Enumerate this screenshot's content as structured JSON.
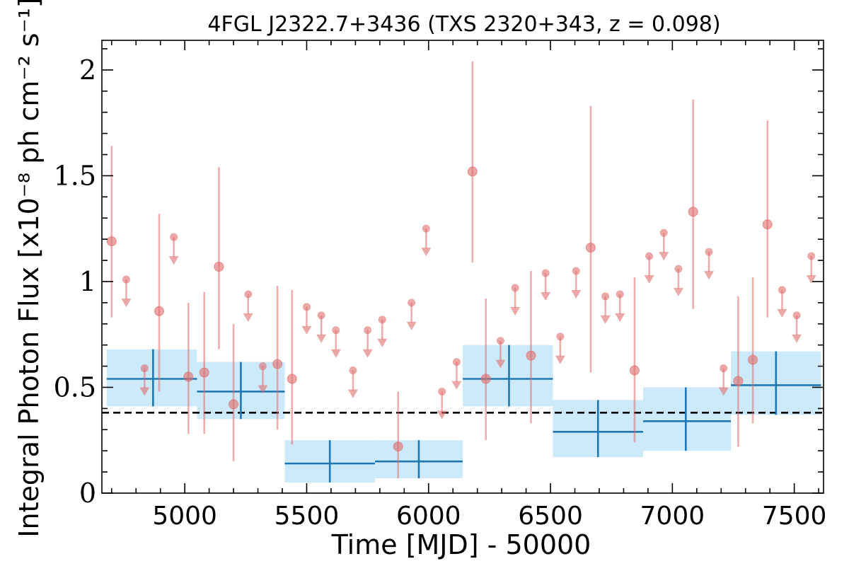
{
  "chart_data": {
    "type": "scatter",
    "title": "4FGL J2322.7+3436 (TXS 2320+343, z = 0.098)",
    "xlabel": "Time [MJD] - 50000",
    "ylabel": "Integral Photon Flux [x10⁻⁸ ph cm⁻² s⁻¹]",
    "xlim": [
      4660,
      7620
    ],
    "ylim": [
      0,
      2.14
    ],
    "xticks": [
      5000,
      5500,
      6000,
      6500,
      7000,
      7500
    ],
    "yticks": [
      0,
      0.5,
      1,
      1.5,
      2
    ],
    "ytick_labels": [
      "0",
      "0.5",
      "1",
      "1.5",
      "2"
    ],
    "reference_line": {
      "y": 0.38,
      "style": "dashed",
      "color": "#000000"
    },
    "colors": {
      "points": "#e06c6c",
      "bins": "#1f77b4",
      "band": "#cdeafb"
    },
    "series": [
      {
        "kind": "detection",
        "points": [
          {
            "x": 4700,
            "y": 1.19,
            "ylo": 0.83,
            "yhi": 1.64
          },
          {
            "x": 4895,
            "y": 0.86,
            "ylo": 0.48,
            "yhi": 1.32
          },
          {
            "x": 5015,
            "y": 0.55,
            "ylo": 0.28,
            "yhi": 0.9
          },
          {
            "x": 5080,
            "y": 0.57,
            "ylo": 0.28,
            "yhi": 0.95
          },
          {
            "x": 5140,
            "y": 1.07,
            "ylo": 0.68,
            "yhi": 1.54
          },
          {
            "x": 5200,
            "y": 0.42,
            "ylo": 0.15,
            "yhi": 0.8
          },
          {
            "x": 5380,
            "y": 0.61,
            "ylo": 0.3,
            "yhi": 0.98
          },
          {
            "x": 5440,
            "y": 0.54,
            "ylo": 0.23,
            "yhi": 0.96
          },
          {
            "x": 5875,
            "y": 0.22,
            "ylo": 0.07,
            "yhi": 0.48
          },
          {
            "x": 6180,
            "y": 1.52,
            "ylo": 1.09,
            "yhi": 2.04
          },
          {
            "x": 6235,
            "y": 0.54,
            "ylo": 0.25,
            "yhi": 0.92
          },
          {
            "x": 6420,
            "y": 0.65,
            "ylo": 0.33,
            "yhi": 1.05
          },
          {
            "x": 6665,
            "y": 1.16,
            "ylo": 0.57,
            "yhi": 1.83
          },
          {
            "x": 6845,
            "y": 0.58,
            "ylo": 0.24,
            "yhi": 1.02
          },
          {
            "x": 7085,
            "y": 1.33,
            "ylo": 0.87,
            "yhi": 1.86
          },
          {
            "x": 7270,
            "y": 0.53,
            "ylo": 0.22,
            "yhi": 0.93
          },
          {
            "x": 7330,
            "y": 0.63,
            "ylo": 0.33,
            "yhi": 1.02
          },
          {
            "x": 7390,
            "y": 1.27,
            "ylo": 0.83,
            "yhi": 1.76
          }
        ]
      },
      {
        "kind": "upper-limit",
        "points": [
          {
            "x": 4760,
            "y": 1.01
          },
          {
            "x": 4835,
            "y": 0.59
          },
          {
            "x": 4955,
            "y": 1.21
          },
          {
            "x": 5260,
            "y": 0.94
          },
          {
            "x": 5320,
            "y": 0.6
          },
          {
            "x": 5500,
            "y": 0.88
          },
          {
            "x": 5560,
            "y": 0.84
          },
          {
            "x": 5620,
            "y": 0.77
          },
          {
            "x": 5690,
            "y": 0.58
          },
          {
            "x": 5750,
            "y": 0.77
          },
          {
            "x": 5810,
            "y": 0.82
          },
          {
            "x": 5930,
            "y": 0.9
          },
          {
            "x": 5990,
            "y": 1.25
          },
          {
            "x": 6055,
            "y": 0.48
          },
          {
            "x": 6115,
            "y": 0.62
          },
          {
            "x": 6295,
            "y": 0.72
          },
          {
            "x": 6355,
            "y": 0.97
          },
          {
            "x": 6480,
            "y": 1.04
          },
          {
            "x": 6540,
            "y": 0.74
          },
          {
            "x": 6605,
            "y": 1.05
          },
          {
            "x": 6725,
            "y": 0.93
          },
          {
            "x": 6785,
            "y": 0.94
          },
          {
            "x": 6905,
            "y": 1.12
          },
          {
            "x": 6965,
            "y": 1.23
          },
          {
            "x": 7025,
            "y": 1.06
          },
          {
            "x": 7150,
            "y": 1.14
          },
          {
            "x": 7210,
            "y": 0.59
          },
          {
            "x": 7450,
            "y": 0.96
          },
          {
            "x": 7510,
            "y": 0.84
          },
          {
            "x": 7570,
            "y": 1.12
          }
        ]
      },
      {
        "kind": "bin",
        "points": [
          {
            "x0": 4680,
            "x1": 5050,
            "xc": 4870,
            "y": 0.54,
            "ylo": 0.41,
            "yhi": 0.68
          },
          {
            "x0": 5050,
            "x1": 5410,
            "xc": 5230,
            "y": 0.48,
            "ylo": 0.35,
            "yhi": 0.62
          },
          {
            "x0": 5410,
            "x1": 5780,
            "xc": 5595,
            "y": 0.14,
            "ylo": 0.05,
            "yhi": 0.25
          },
          {
            "x0": 5780,
            "x1": 6140,
            "xc": 5960,
            "y": 0.15,
            "ylo": 0.07,
            "yhi": 0.25
          },
          {
            "x0": 6140,
            "x1": 6510,
            "xc": 6330,
            "y": 0.54,
            "ylo": 0.41,
            "yhi": 0.7
          },
          {
            "x0": 6510,
            "x1": 6880,
            "xc": 6695,
            "y": 0.29,
            "ylo": 0.17,
            "yhi": 0.44
          },
          {
            "x0": 6880,
            "x1": 7240,
            "xc": 7055,
            "y": 0.34,
            "ylo": 0.2,
            "yhi": 0.5
          },
          {
            "x0": 7240,
            "x1": 7610,
            "xc": 7425,
            "y": 0.51,
            "ylo": 0.37,
            "yhi": 0.67
          }
        ]
      }
    ]
  }
}
